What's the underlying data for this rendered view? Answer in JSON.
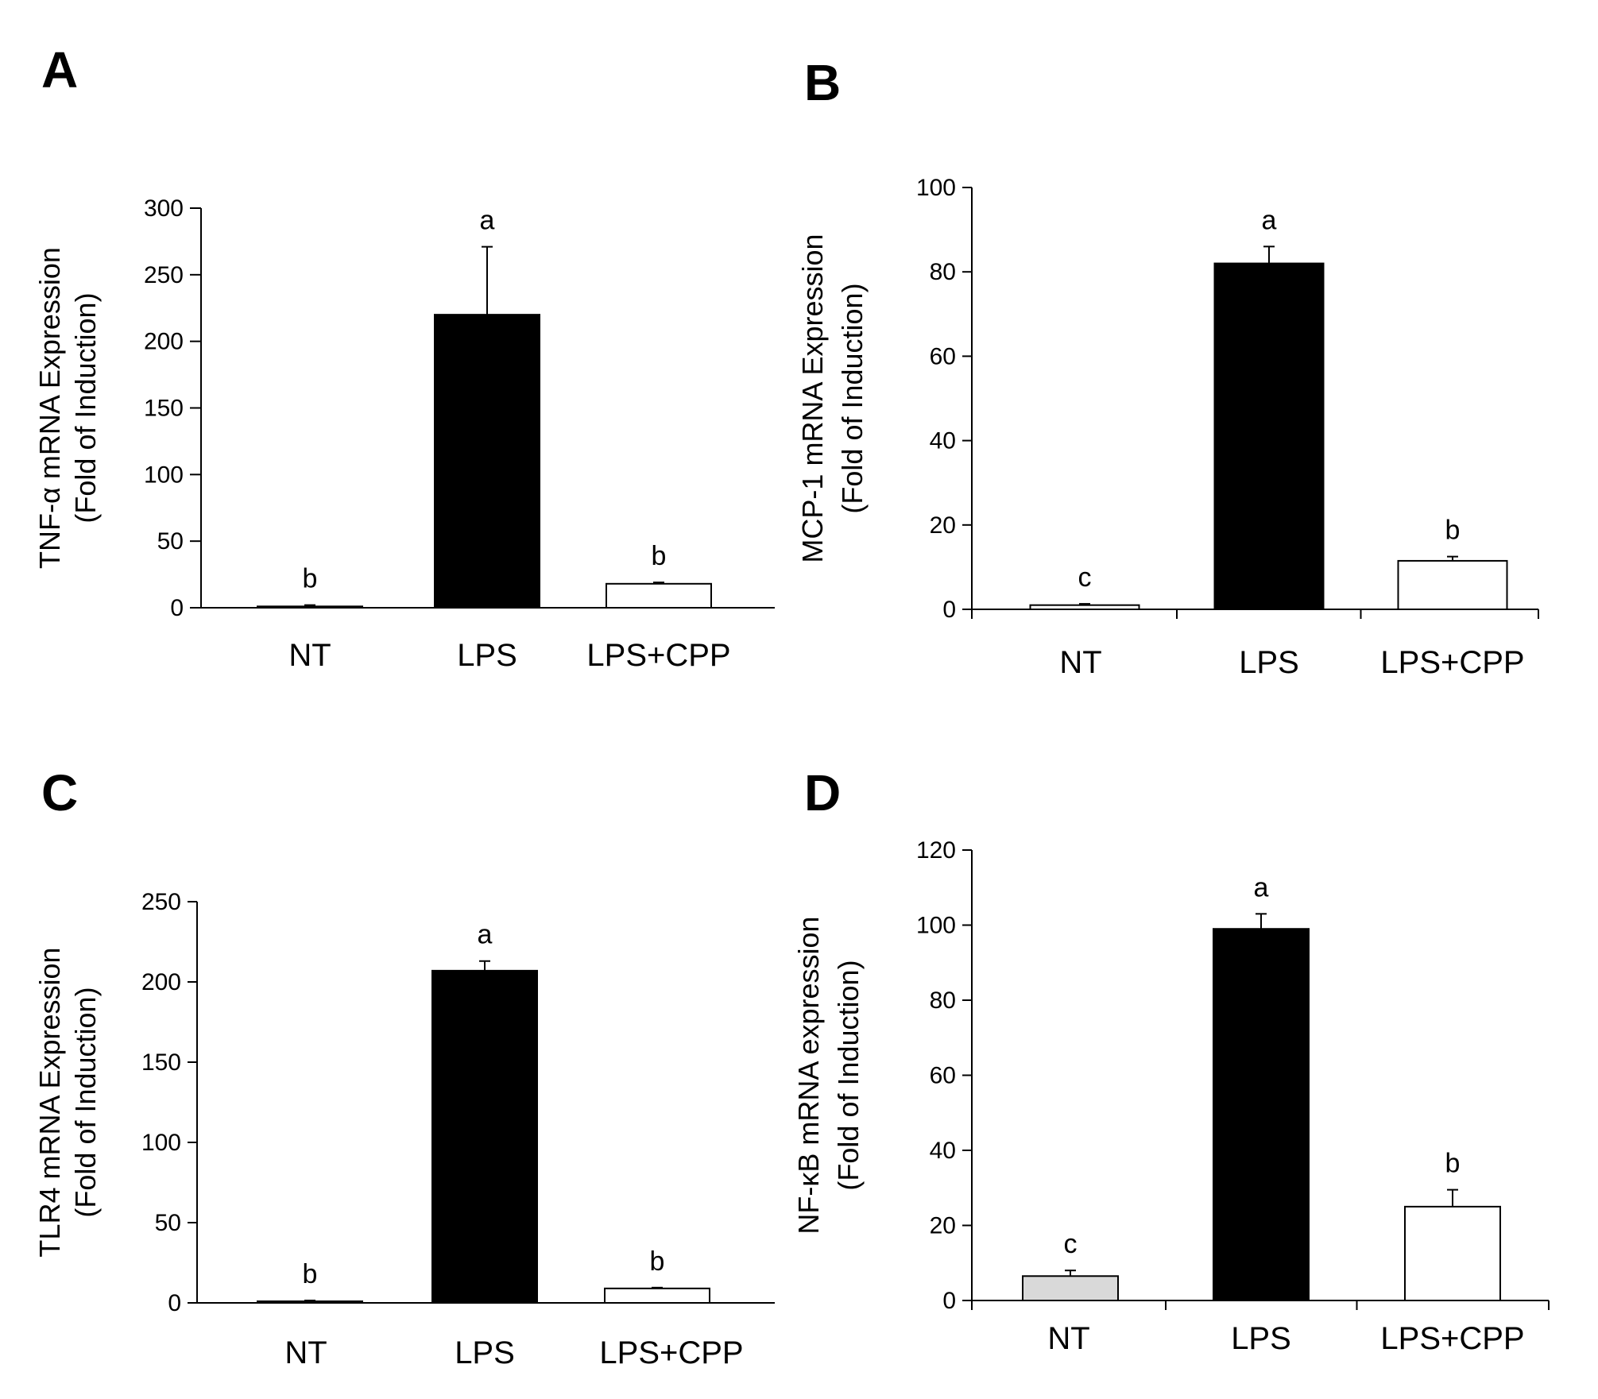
{
  "chart_data": [
    {
      "panel": "A",
      "type": "bar",
      "categories": [
        "NT",
        "LPS",
        "LPS+CPP"
      ],
      "values": [
        1,
        220,
        18
      ],
      "errors": [
        1,
        51,
        1
      ],
      "significance": [
        "b",
        "a",
        "b"
      ],
      "ylabel": [
        "TNF-α mRNA Expression",
        "(Fold of Induction)"
      ],
      "ylim": [
        0,
        300
      ],
      "yticks": [
        0,
        50,
        100,
        150,
        200,
        250,
        300
      ],
      "colors": [
        "#ffffff",
        "#000000",
        "#ffffff"
      ],
      "grid": false
    },
    {
      "panel": "B",
      "type": "bar",
      "categories": [
        "NT",
        "LPS",
        "LPS+CPP"
      ],
      "values": [
        1,
        82,
        11.5
      ],
      "errors": [
        0.3,
        4,
        1
      ],
      "significance": [
        "c",
        "a",
        "b"
      ],
      "ylabel": [
        "MCP-1 mRNA Expression",
        "(Fold of Induction)"
      ],
      "ylim": [
        0,
        100
      ],
      "yticks": [
        0,
        20,
        40,
        60,
        80,
        100
      ],
      "colors": [
        "#ffffff",
        "#000000",
        "#ffffff"
      ],
      "grid": false
    },
    {
      "panel": "C",
      "type": "bar",
      "categories": [
        "NT",
        "LPS",
        "LPS+CPP"
      ],
      "values": [
        1,
        207,
        9
      ],
      "errors": [
        0.5,
        6,
        0.5
      ],
      "significance": [
        "b",
        "a",
        "b"
      ],
      "ylabel": [
        "TLR4 mRNA Expression",
        "(Fold of Induction)"
      ],
      "ylim": [
        0,
        250
      ],
      "yticks": [
        0,
        50,
        100,
        150,
        200,
        250
      ],
      "colors": [
        "#ffffff",
        "#000000",
        "#ffffff"
      ],
      "grid": false
    },
    {
      "panel": "D",
      "type": "bar",
      "categories": [
        "NT",
        "LPS",
        "LPS+CPP"
      ],
      "values": [
        6.5,
        99,
        25
      ],
      "errors": [
        1.5,
        4,
        4.5
      ],
      "significance": [
        "c",
        "a",
        "b"
      ],
      "ylabel": [
        "NF-κB mRNA expression",
        "(Fold of Induction)"
      ],
      "ylim": [
        0,
        120
      ],
      "yticks": [
        0,
        20,
        40,
        60,
        80,
        100,
        120
      ],
      "colors": [
        "#d9d9d9",
        "#000000",
        "#ffffff"
      ],
      "grid": false
    }
  ]
}
